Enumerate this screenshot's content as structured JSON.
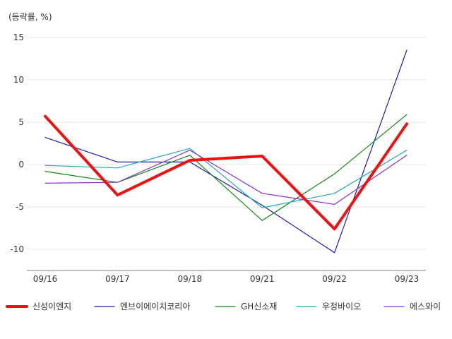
{
  "chart_data": {
    "type": "line",
    "unit_label": "(등락률, %)",
    "categories": [
      "09/16",
      "09/17",
      "09/18",
      "09/21",
      "09/22",
      "09/23"
    ],
    "ylim": [
      -12.5,
      15
    ],
    "yticks": [
      15,
      10,
      5,
      0,
      -5,
      -10
    ],
    "grid": true,
    "legend_position": "bottom",
    "series": [
      {
        "name": "신성이엔지",
        "color": "#ee1111",
        "width": 4,
        "values": [
          5.7,
          -3.6,
          0.5,
          1.0,
          -7.6,
          4.8
        ]
      },
      {
        "name": "엔브이에이치코리아",
        "color": "#1a1aaa",
        "width": 1.2,
        "values": [
          3.2,
          0.3,
          0.3,
          -4.8,
          -10.4,
          13.5
        ]
      },
      {
        "name": "GH신소재",
        "color": "#118811",
        "width": 1.2,
        "values": [
          -0.8,
          -2.1,
          1.1,
          -6.6,
          -1.1,
          5.9
        ]
      },
      {
        "name": "우정바이오",
        "color": "#22aaaa",
        "width": 1.2,
        "values": [
          -0.1,
          -0.4,
          1.9,
          -5.1,
          -3.4,
          1.7
        ]
      },
      {
        "name": "에스와이",
        "color": "#8833cc",
        "width": 1.2,
        "values": [
          -2.2,
          -2.1,
          1.7,
          -3.4,
          -4.7,
          1.1
        ]
      }
    ]
  }
}
